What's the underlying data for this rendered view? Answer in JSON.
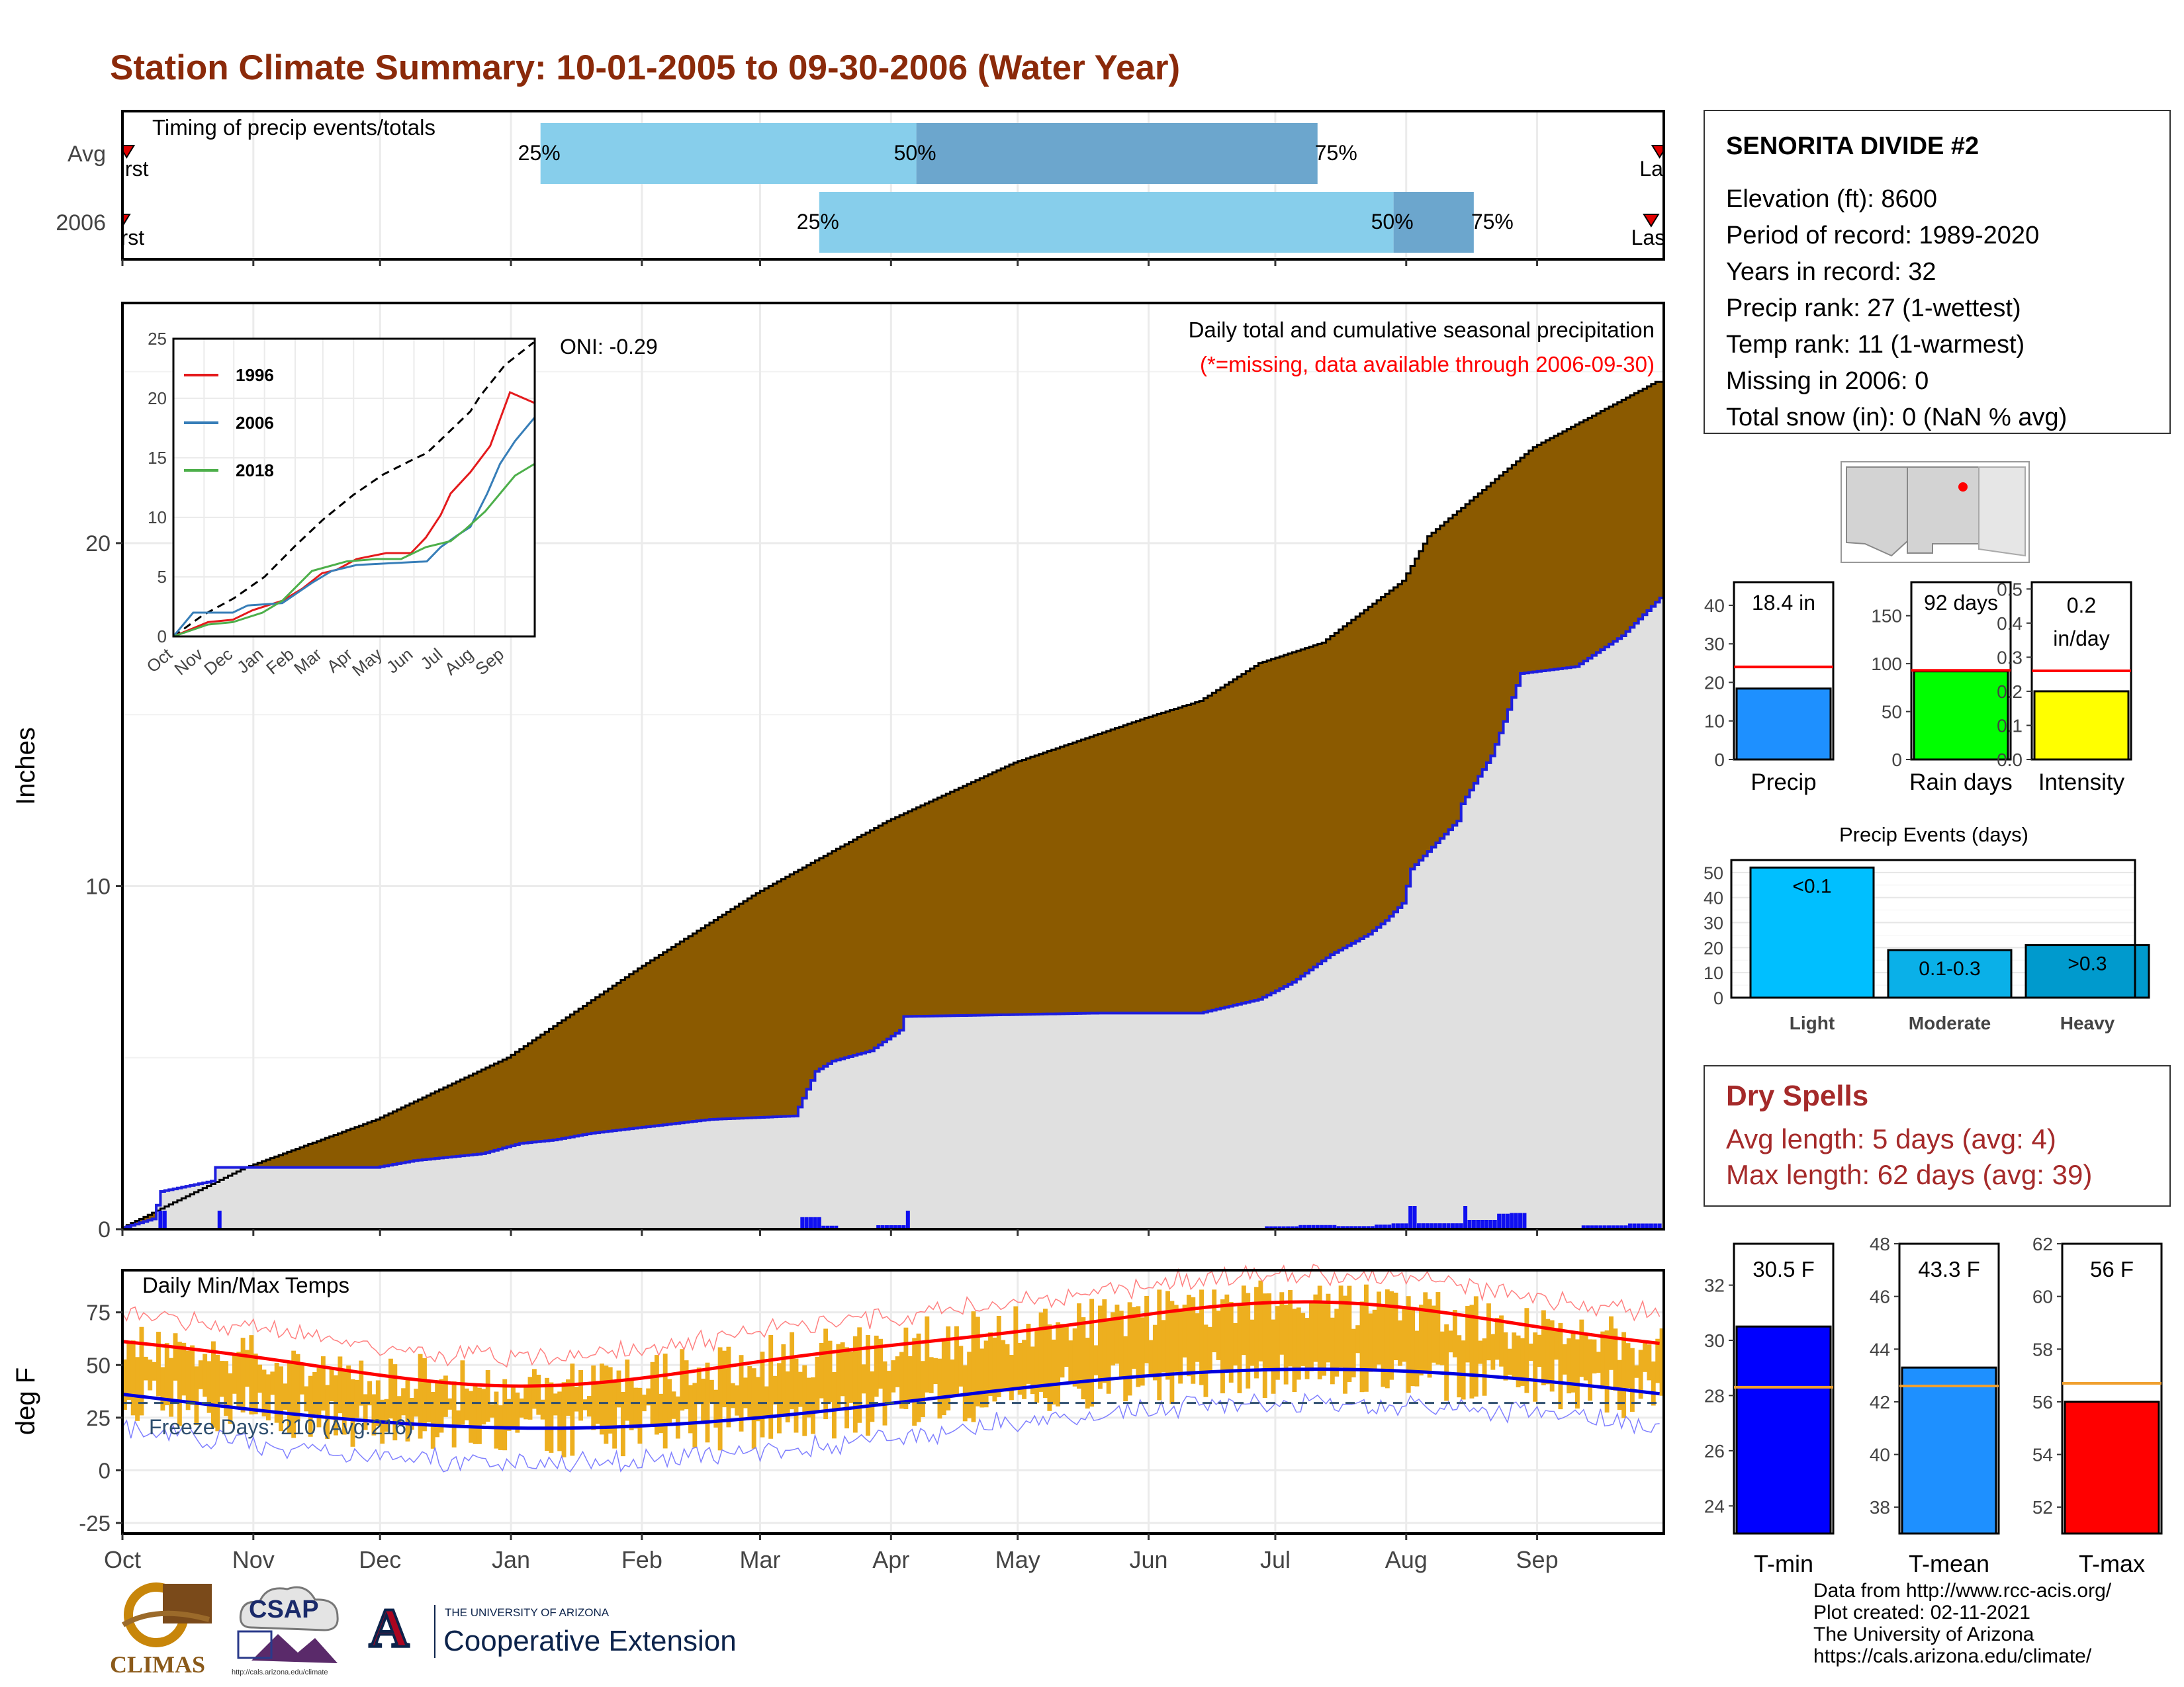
{
  "title": "Station Climate Summary: 10-01-2005 to 09-30-2006 (Water Year)",
  "colors": {
    "title": "#8B2A0A",
    "avg_area": "#8B5A00",
    "obs_area": "#E0E0E0",
    "obs_line": "#1E1EDE",
    "wet_area": "#1E8B1E",
    "timing_light": "#87CEEB",
    "timing_dark": "#6CA6CD",
    "temp_bars": "#EDAF1F",
    "tmax_avg": "#FF0000",
    "tmin_avg": "#0000DD",
    "dry_spells": "#A52A2A"
  },
  "timing": {
    "label": "Timing of precip events/totals",
    "rows": [
      {
        "name": "Avg",
        "first_label": "First",
        "last_label": "Last",
        "first_day": 1,
        "last_day": 364,
        "p25_day": 99,
        "p50_day": 188,
        "p75_day": 283,
        "labels": {
          "p25": "25%",
          "p50": "50%",
          "p75": "75%"
        }
      },
      {
        "name": "2006",
        "first_label": "First",
        "last_label": "Last",
        "first_day": 0,
        "last_day": 362,
        "p25_day": 165,
        "p50_day": 301,
        "p75_day": 320,
        "labels": {
          "p25": "25%",
          "p50": "50%",
          "p75": "75%"
        }
      }
    ]
  },
  "precip": {
    "ylabel": "Inches",
    "oni": "ONI: -0.29",
    "subtitle": "Daily total and cumulative seasonal precipitation",
    "missing_note": "(*=missing, data available through 2006-09-30)",
    "yticks": [
      0,
      10,
      20
    ],
    "ylim": [
      0,
      27
    ]
  },
  "inset": {
    "yticks": [
      0,
      5,
      10,
      15,
      20,
      25
    ],
    "months": [
      "Oct",
      "Nov",
      "Dec",
      "Jan",
      "Feb",
      "Mar",
      "Apr",
      "May",
      "Jun",
      "Jul",
      "Aug",
      "Sep"
    ],
    "legend": [
      "1996",
      "2006",
      "2018"
    ],
    "series_colors": [
      "#E41A1C",
      "#377EB8",
      "#4DAF4A"
    ]
  },
  "temps": {
    "label": "Daily Min/Max Temps",
    "ylabel": "deg F",
    "freeze": "Freeze Days: 210 (Avg:216)",
    "yticks": [
      -25,
      0,
      25,
      50,
      75
    ],
    "ylim": [
      -30,
      95
    ]
  },
  "months": [
    "Oct",
    "Nov",
    "Dec",
    "Jan",
    "Feb",
    "Mar",
    "Apr",
    "May",
    "Jun",
    "Jul",
    "Aug",
    "Sep"
  ],
  "station": {
    "name": "SENORITA DIVIDE #2",
    "lines": [
      "Elevation (ft): 8600",
      "Period of record: 1989-2020",
      "Years in record: 32",
      "Precip rank: 27 (1-wettest)",
      "Temp rank: 11 (1-warmest)",
      "Missing in 2006: 0",
      "Total snow (in): 0 (NaN % avg)"
    ]
  },
  "summary_bars": [
    {
      "label": "Precip",
      "value_text": "18.4 in",
      "value": 18.4,
      "avg": 24,
      "ylim": [
        0,
        46
      ],
      "yticks": [
        0,
        10,
        20,
        30,
        40
      ],
      "color": "#1E90FF"
    },
    {
      "label": "Rain days",
      "value_text": "92 days",
      "value": 92,
      "avg": 93,
      "ylim": [
        0,
        185
      ],
      "yticks": [
        0,
        50,
        100,
        150
      ],
      "color": "#00FF00"
    },
    {
      "label": "Intensity",
      "value_text": "0.2 in/day",
      "value": 0.2,
      "avg": 0.26,
      "ylim": [
        0,
        0.52
      ],
      "yticks": [
        "0.0",
        "0.1",
        "0.2",
        "0.3",
        "0.4",
        "0.5"
      ],
      "color": "#FFFF00"
    }
  ],
  "precip_events": {
    "title": "Precip Events (days)",
    "yticks": [
      0,
      10,
      20,
      30,
      40,
      50
    ],
    "bars": [
      {
        "category": "Light",
        "tag": "<0.1",
        "value": 52,
        "color": "#00BFFF"
      },
      {
        "category": "Moderate",
        "tag": "0.1-0.3",
        "value": 19,
        "color": "#0AB0E8"
      },
      {
        "category": "Heavy",
        "tag": ">0.3",
        "value": 21,
        "color": "#009ACD"
      }
    ]
  },
  "dry_spells": {
    "title": "Dry Spells",
    "avg_line": "Avg length: 5 days (avg: 4)",
    "max_line": "Max length: 62 days (avg: 39)"
  },
  "temp_bars": [
    {
      "label": "T-min",
      "value_text": "30.5 F",
      "value": 30.5,
      "avg": 28.3,
      "ylim": [
        23,
        33.5
      ],
      "yticks": [
        24,
        26,
        28,
        30,
        32
      ],
      "color": "#0000FF"
    },
    {
      "label": "T-mean",
      "value_text": "43.3 F",
      "value": 43.3,
      "avg": 42.6,
      "ylim": [
        37,
        48
      ],
      "yticks": [
        38,
        40,
        42,
        44,
        46,
        48
      ],
      "color": "#1E90FF"
    },
    {
      "label": "T-max",
      "value_text": "56 F",
      "value": 56,
      "avg": 56.7,
      "ylim": [
        51,
        62
      ],
      "yticks": [
        52,
        54,
        56,
        58,
        60,
        62
      ],
      "color": "#FF0000"
    }
  ],
  "credits": [
    "Data from http://www.rcc-acis.org/",
    "Plot created: 02-11-2021",
    "The University of Arizona",
    "https://cals.arizona.edu/climate/"
  ],
  "logos": {
    "climas": "CLIMAS",
    "csap": "CSAP",
    "csap_url": "http://cals.arizona.edu/climate",
    "ua_small": "THE UNIVERSITY OF ARIZONA",
    "ua_big": "Cooperative Extension",
    "ua_mark": "A"
  }
}
